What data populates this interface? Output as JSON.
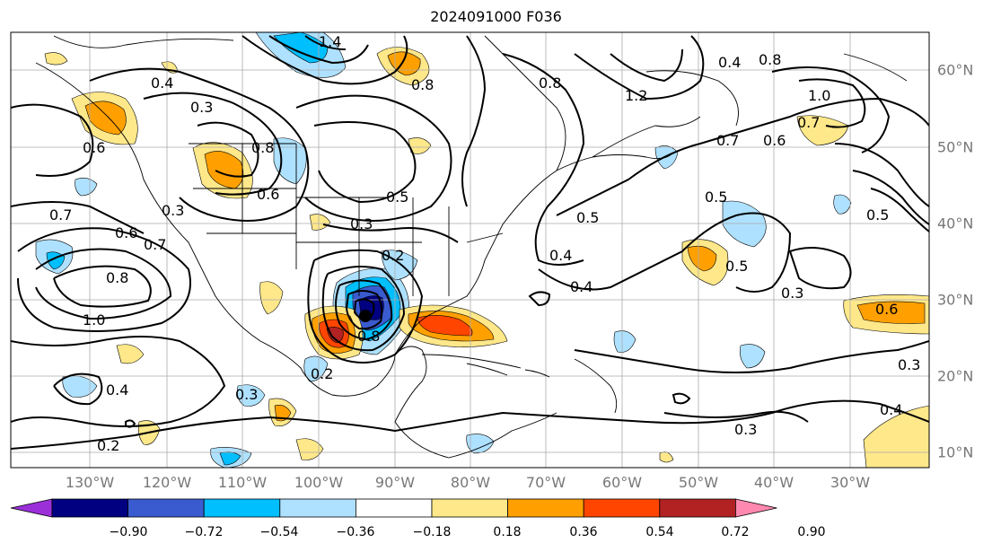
{
  "title": "2024091000 F036",
  "lon_labels": [
    "130°W",
    "120°W",
    "110°W",
    "100°W",
    "90°W",
    "80°W",
    "70°W",
    "60°W",
    "50°W",
    "40°W",
    "30°W"
  ],
  "lat_labels": [
    "60°N",
    "50°N",
    "40°N",
    "30°N",
    "20°N",
    "10°N"
  ],
  "colorbar": {
    "ticks": [
      "−0.90",
      "−0.72",
      "−0.54",
      "−0.36",
      "−0.18",
      "0.18",
      "0.36",
      "0.54",
      "0.72",
      "0.90"
    ],
    "colors": [
      "#9b30d9",
      "#000080",
      "#3a5bd0",
      "#00bfff",
      "#aee1ff",
      "#ffffff",
      "#ffe88a",
      "#ffa000",
      "#ff4500",
      "#b22222",
      "#ff88b0"
    ]
  },
  "contour_labels": [
    {
      "text": "1.4"
    },
    {
      "text": "0.8"
    },
    {
      "text": "0.4"
    },
    {
      "text": "0.3"
    },
    {
      "text": "0.6"
    },
    {
      "text": "0.8"
    },
    {
      "text": "0.6"
    },
    {
      "text": "0.7"
    },
    {
      "text": "0.3"
    },
    {
      "text": "0.5"
    },
    {
      "text": "0.3"
    },
    {
      "text": "0.2"
    },
    {
      "text": "0.6"
    },
    {
      "text": "0.7"
    },
    {
      "text": "0.8"
    },
    {
      "text": "1.0"
    },
    {
      "text": "0.4"
    },
    {
      "text": "0.3"
    },
    {
      "text": "0.2"
    },
    {
      "text": "0.2"
    },
    {
      "text": "0.8"
    },
    {
      "text": "1.2"
    },
    {
      "text": "0.4"
    },
    {
      "text": "0.8"
    },
    {
      "text": "1.0"
    },
    {
      "text": "0.7"
    },
    {
      "text": "0.7"
    },
    {
      "text": "0.6"
    },
    {
      "text": "0.5"
    },
    {
      "text": "0.5"
    },
    {
      "text": "0.4"
    },
    {
      "text": "0.4"
    },
    {
      "text": "0.5"
    },
    {
      "text": "0.3"
    },
    {
      "text": "0.6"
    },
    {
      "text": "0.3"
    },
    {
      "text": "0.4"
    },
    {
      "text": "0.3"
    },
    {
      "text": "0.5"
    },
    {
      "text": "0.8"
    }
  ]
}
